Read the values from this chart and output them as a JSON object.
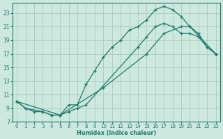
{
  "xlabel": "Humidex (Indice chaleur)",
  "bg_color": "#cce8df",
  "grid_color": "#aaccbb",
  "line_color": "#1f7a6a",
  "xlim": [
    -0.5,
    23.5
  ],
  "ylim": [
    7,
    24.5
  ],
  "xticks": [
    0,
    1,
    2,
    3,
    4,
    5,
    6,
    7,
    8,
    9,
    10,
    11,
    12,
    13,
    14,
    15,
    16,
    17,
    18,
    19,
    20,
    21,
    22,
    23
  ],
  "yticks": [
    7,
    9,
    11,
    13,
    15,
    17,
    19,
    21,
    23
  ],
  "curve1_x": [
    0,
    1,
    2,
    3,
    4,
    5,
    6,
    7,
    8,
    9,
    10,
    11,
    12,
    13,
    14,
    15,
    16,
    17,
    18,
    19,
    20,
    21,
    22,
    23
  ],
  "curve1_y": [
    10,
    9,
    8.5,
    8.5,
    8,
    8,
    9.5,
    9.5,
    12.5,
    14.5,
    16.5,
    18,
    19,
    20.5,
    21,
    22,
    23.5,
    24,
    23.5,
    22.5,
    21,
    20,
    18,
    17
  ],
  "curve2_x": [
    0,
    1,
    3,
    4,
    5,
    6,
    7,
    8,
    14,
    15,
    16,
    17,
    18,
    19,
    20,
    21,
    22,
    23
  ],
  "curve2_y": [
    10,
    9,
    8.5,
    8,
    8,
    8.5,
    9,
    9.5,
    18,
    19.5,
    21,
    21.5,
    21,
    20,
    20,
    19.5,
    18,
    17
  ],
  "curve3_x": [
    0,
    5,
    10,
    15,
    17,
    19,
    20,
    23
  ],
  "curve3_y": [
    10,
    8,
    12,
    17,
    20,
    21,
    21,
    17
  ]
}
